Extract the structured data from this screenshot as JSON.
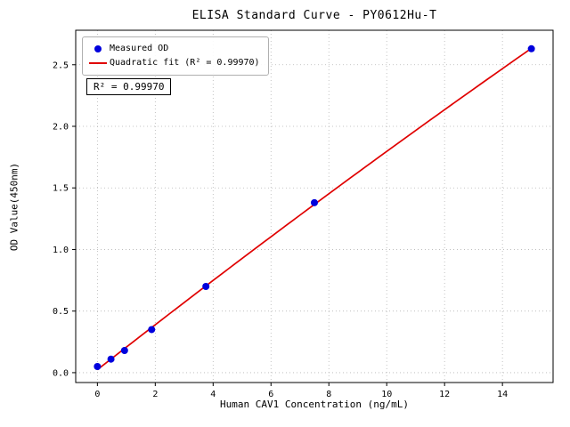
{
  "chart_data": {
    "type": "scatter",
    "title": "ELISA Standard Curve - PY0612Hu-T",
    "xlabel": "Human CAV1 Concentration (ng/mL)",
    "ylabel": "OD Value(450nm)",
    "xlim": [
      -0.75,
      15.75
    ],
    "ylim": [
      -0.08,
      2.78
    ],
    "xticks": [
      0,
      2,
      4,
      6,
      8,
      10,
      12,
      14
    ],
    "xtick_labels": [
      "0",
      "2",
      "4",
      "6",
      "8",
      "10",
      "12",
      "14"
    ],
    "yticks": [
      0.0,
      0.5,
      1.0,
      1.5,
      2.0,
      2.5
    ],
    "ytick_labels": [
      "0.0",
      "0.5",
      "1.0",
      "1.5",
      "2.0",
      "2.5"
    ],
    "grid": true,
    "legend_position": "upper-left",
    "series": [
      {
        "name": "Measured OD",
        "type": "scatter",
        "color": "#0000dd",
        "x": [
          0,
          0.469,
          0.938,
          1.875,
          3.75,
          7.5,
          15
        ],
        "y": [
          0.05,
          0.11,
          0.18,
          0.35,
          0.7,
          1.38,
          2.63
        ]
      },
      {
        "name": "Quadratic fit (R² = 0.99970)",
        "type": "line",
        "fit": "quadratic",
        "color": "#e00000"
      }
    ],
    "annotation": "R² = 0.99970"
  }
}
